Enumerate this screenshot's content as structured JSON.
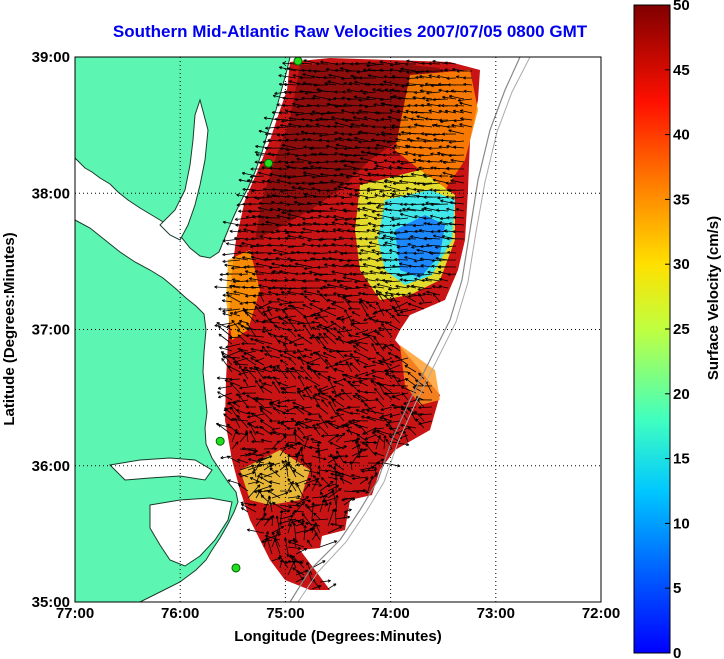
{
  "title": "Southern Mid-Atlantic Raw Velocities 2007/07/05 0800 GMT",
  "map": {
    "xlabel": "Longitude (Degrees:Minutes)",
    "ylabel": "Latitude (Degrees:Minutes)",
    "xticks": [
      "77:00",
      "76:00",
      "75:00",
      "74:00",
      "73:00",
      "72:00"
    ],
    "yticks": [
      "39:00",
      "38:00",
      "37:00",
      "36:00",
      "35:00"
    ],
    "xlim": [
      -77,
      -72
    ],
    "ylim": [
      35,
      39
    ],
    "grid": "dotted",
    "land_color": "#5cf6b2",
    "coastline_color": "#000000",
    "station_color": "#22dd22",
    "stations": [
      {
        "lon": -74.88,
        "lat": 38.97
      },
      {
        "lon": -75.16,
        "lat": 38.22
      },
      {
        "lon": -75.62,
        "lat": 36.18
      },
      {
        "lon": -75.47,
        "lat": 35.25
      }
    ]
  },
  "colorbar": {
    "label": "Surface Velocity (cm/s)",
    "ticks": [
      "50",
      "45",
      "40",
      "35",
      "30",
      "25",
      "20",
      "15",
      "10",
      "5",
      "0"
    ],
    "range": [
      0,
      50
    ],
    "colormap": "jet"
  }
}
